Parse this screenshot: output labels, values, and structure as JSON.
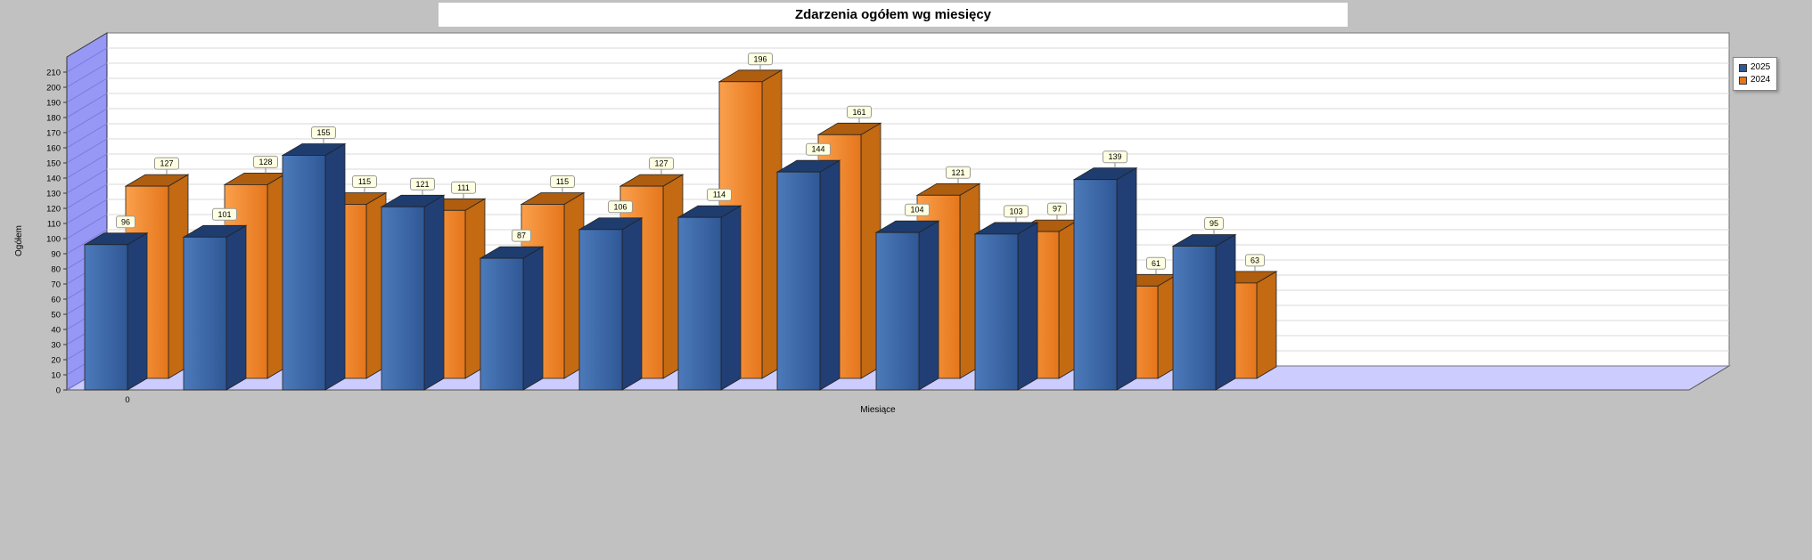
{
  "chart_data": {
    "type": "bar",
    "style": "3d-grouped",
    "title": "Zdarzenia ogółem wg miesięcy",
    "xlabel": "Miesiące",
    "ylabel": "Ogółem",
    "ylim": [
      0,
      210
    ],
    "ytick_step": 10,
    "grid": true,
    "legend_position": "top-right",
    "categories": [
      "0",
      "",
      "",
      "",
      "",
      "",
      "",
      "",
      "",
      "",
      "",
      ""
    ],
    "series": [
      {
        "name": "2025",
        "color_front_light": "#4C7ABA",
        "color_front_dark": "#2F5795",
        "color_top": "#1E3C6E",
        "color_side": "#213F75",
        "values": [
          96,
          101,
          155,
          121,
          87,
          106,
          114,
          144,
          104,
          103,
          139,
          95
        ]
      },
      {
        "name": "2024",
        "color_front_light": "#FBA04D",
        "color_front_dark": "#E5761B",
        "color_top": "#AE5E0E",
        "color_side": "#C36A12",
        "values": [
          127,
          128,
          115,
          111,
          115,
          127,
          196,
          161,
          121,
          97,
          61,
          63
        ]
      }
    ],
    "value_labels": true
  },
  "frame": {
    "outer_bg": "#C1C1C1",
    "plot_bg": "#FFFFFF",
    "wall_color": "#9797F5",
    "floor_color": "#CCCCFF",
    "gridline_color": "#D9D9D9",
    "wall_line_color": "#7A7ADC",
    "value_label_box_bg": "#FFFFE1",
    "value_label_box_border": "#9A9A9A"
  }
}
